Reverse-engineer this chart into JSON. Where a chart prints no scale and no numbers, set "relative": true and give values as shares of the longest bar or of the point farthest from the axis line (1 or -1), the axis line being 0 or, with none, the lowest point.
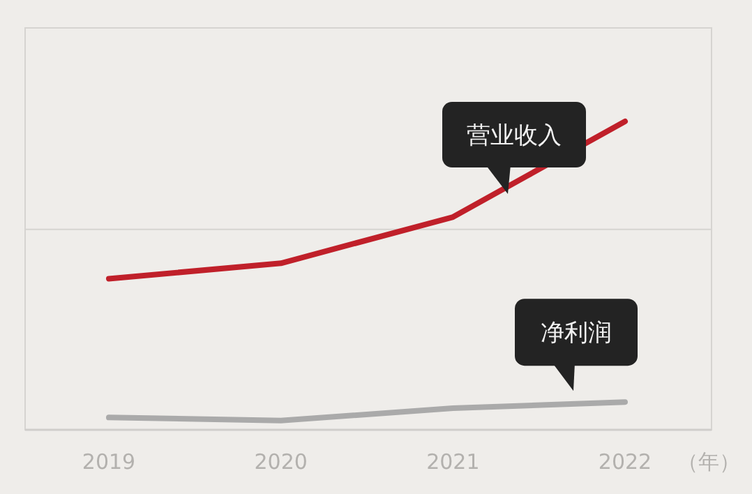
{
  "chart_data": {
    "type": "line",
    "relative": true,
    "xlabel": "（年）",
    "categories": [
      "2019",
      "2020",
      "2021",
      "2022"
    ],
    "ref_lines": [
      {
        "axis": "y",
        "value": 0.65,
        "color": "#d6d4d1"
      }
    ],
    "series": [
      {
        "name": "营业收入",
        "color": "#c0202a",
        "values": [
          0.49,
          0.54,
          0.69,
          1
        ]
      },
      {
        "name": "净利润",
        "color": "#aaaaaa",
        "values": [
          0.04,
          0.03,
          0.07,
          0.09
        ]
      }
    ]
  }
}
